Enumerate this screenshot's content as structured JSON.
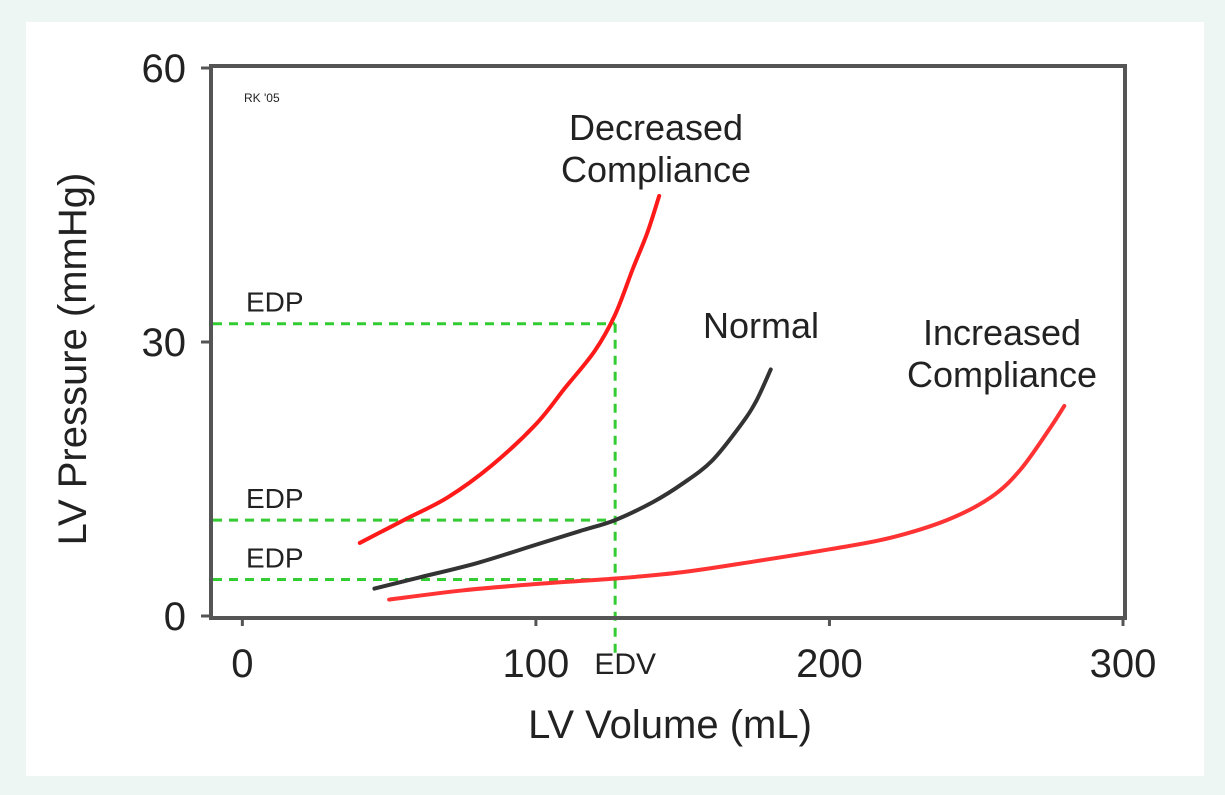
{
  "chart_data": {
    "type": "line",
    "xlabel": "LV Volume (mL)",
    "ylabel": "LV Pressure (mmHg)",
    "xlim": [
      -10,
      300
    ],
    "ylim": [
      0,
      60
    ],
    "x_ticks": [
      "0",
      "100",
      "200",
      "300"
    ],
    "y_ticks": [
      "0",
      "30",
      "60"
    ],
    "x_tick_values": [
      0,
      100,
      200,
      300
    ],
    "y_tick_values": [
      0,
      30,
      60
    ],
    "grid": false,
    "watermark": "RK '05",
    "series": [
      {
        "name": "Decreased Compliance",
        "label_lines": [
          "Decreased",
          "Compliance"
        ],
        "color": "#ff1a1a",
        "x": [
          40,
          55,
          70,
          85,
          100,
          110,
          120,
          127,
          133,
          138,
          142
        ],
        "y": [
          8,
          10.5,
          13,
          16.5,
          21,
          25,
          29,
          33,
          38,
          42,
          46
        ]
      },
      {
        "name": "Normal",
        "label_lines": [
          "Normal"
        ],
        "color": "#333333",
        "x": [
          45,
          60,
          80,
          100,
          115,
          127,
          140,
          150,
          160,
          170,
          175,
          180
        ],
        "y": [
          3,
          4.2,
          5.8,
          7.8,
          9.3,
          10.5,
          12.5,
          14.5,
          17,
          21,
          23.5,
          27
        ]
      },
      {
        "name": "Increased Compliance",
        "label_lines": [
          "Increased",
          "Compliance"
        ],
        "color": "#ff3333",
        "x": [
          50,
          75,
          100,
          127,
          150,
          175,
          200,
          220,
          240,
          255,
          265,
          275,
          280
        ],
        "y": [
          1.8,
          2.8,
          3.5,
          4.1,
          4.8,
          6,
          7.3,
          8.5,
          10.5,
          13,
          16,
          20.5,
          23
        ]
      }
    ],
    "reference_lines": {
      "color": "#33cc33",
      "edv": {
        "label": "EDV",
        "x": 127
      },
      "edp": [
        {
          "label": "EDP",
          "y": 32
        },
        {
          "label": "EDP",
          "y": 10.5
        },
        {
          "label": "EDP",
          "y": 4
        }
      ]
    }
  }
}
